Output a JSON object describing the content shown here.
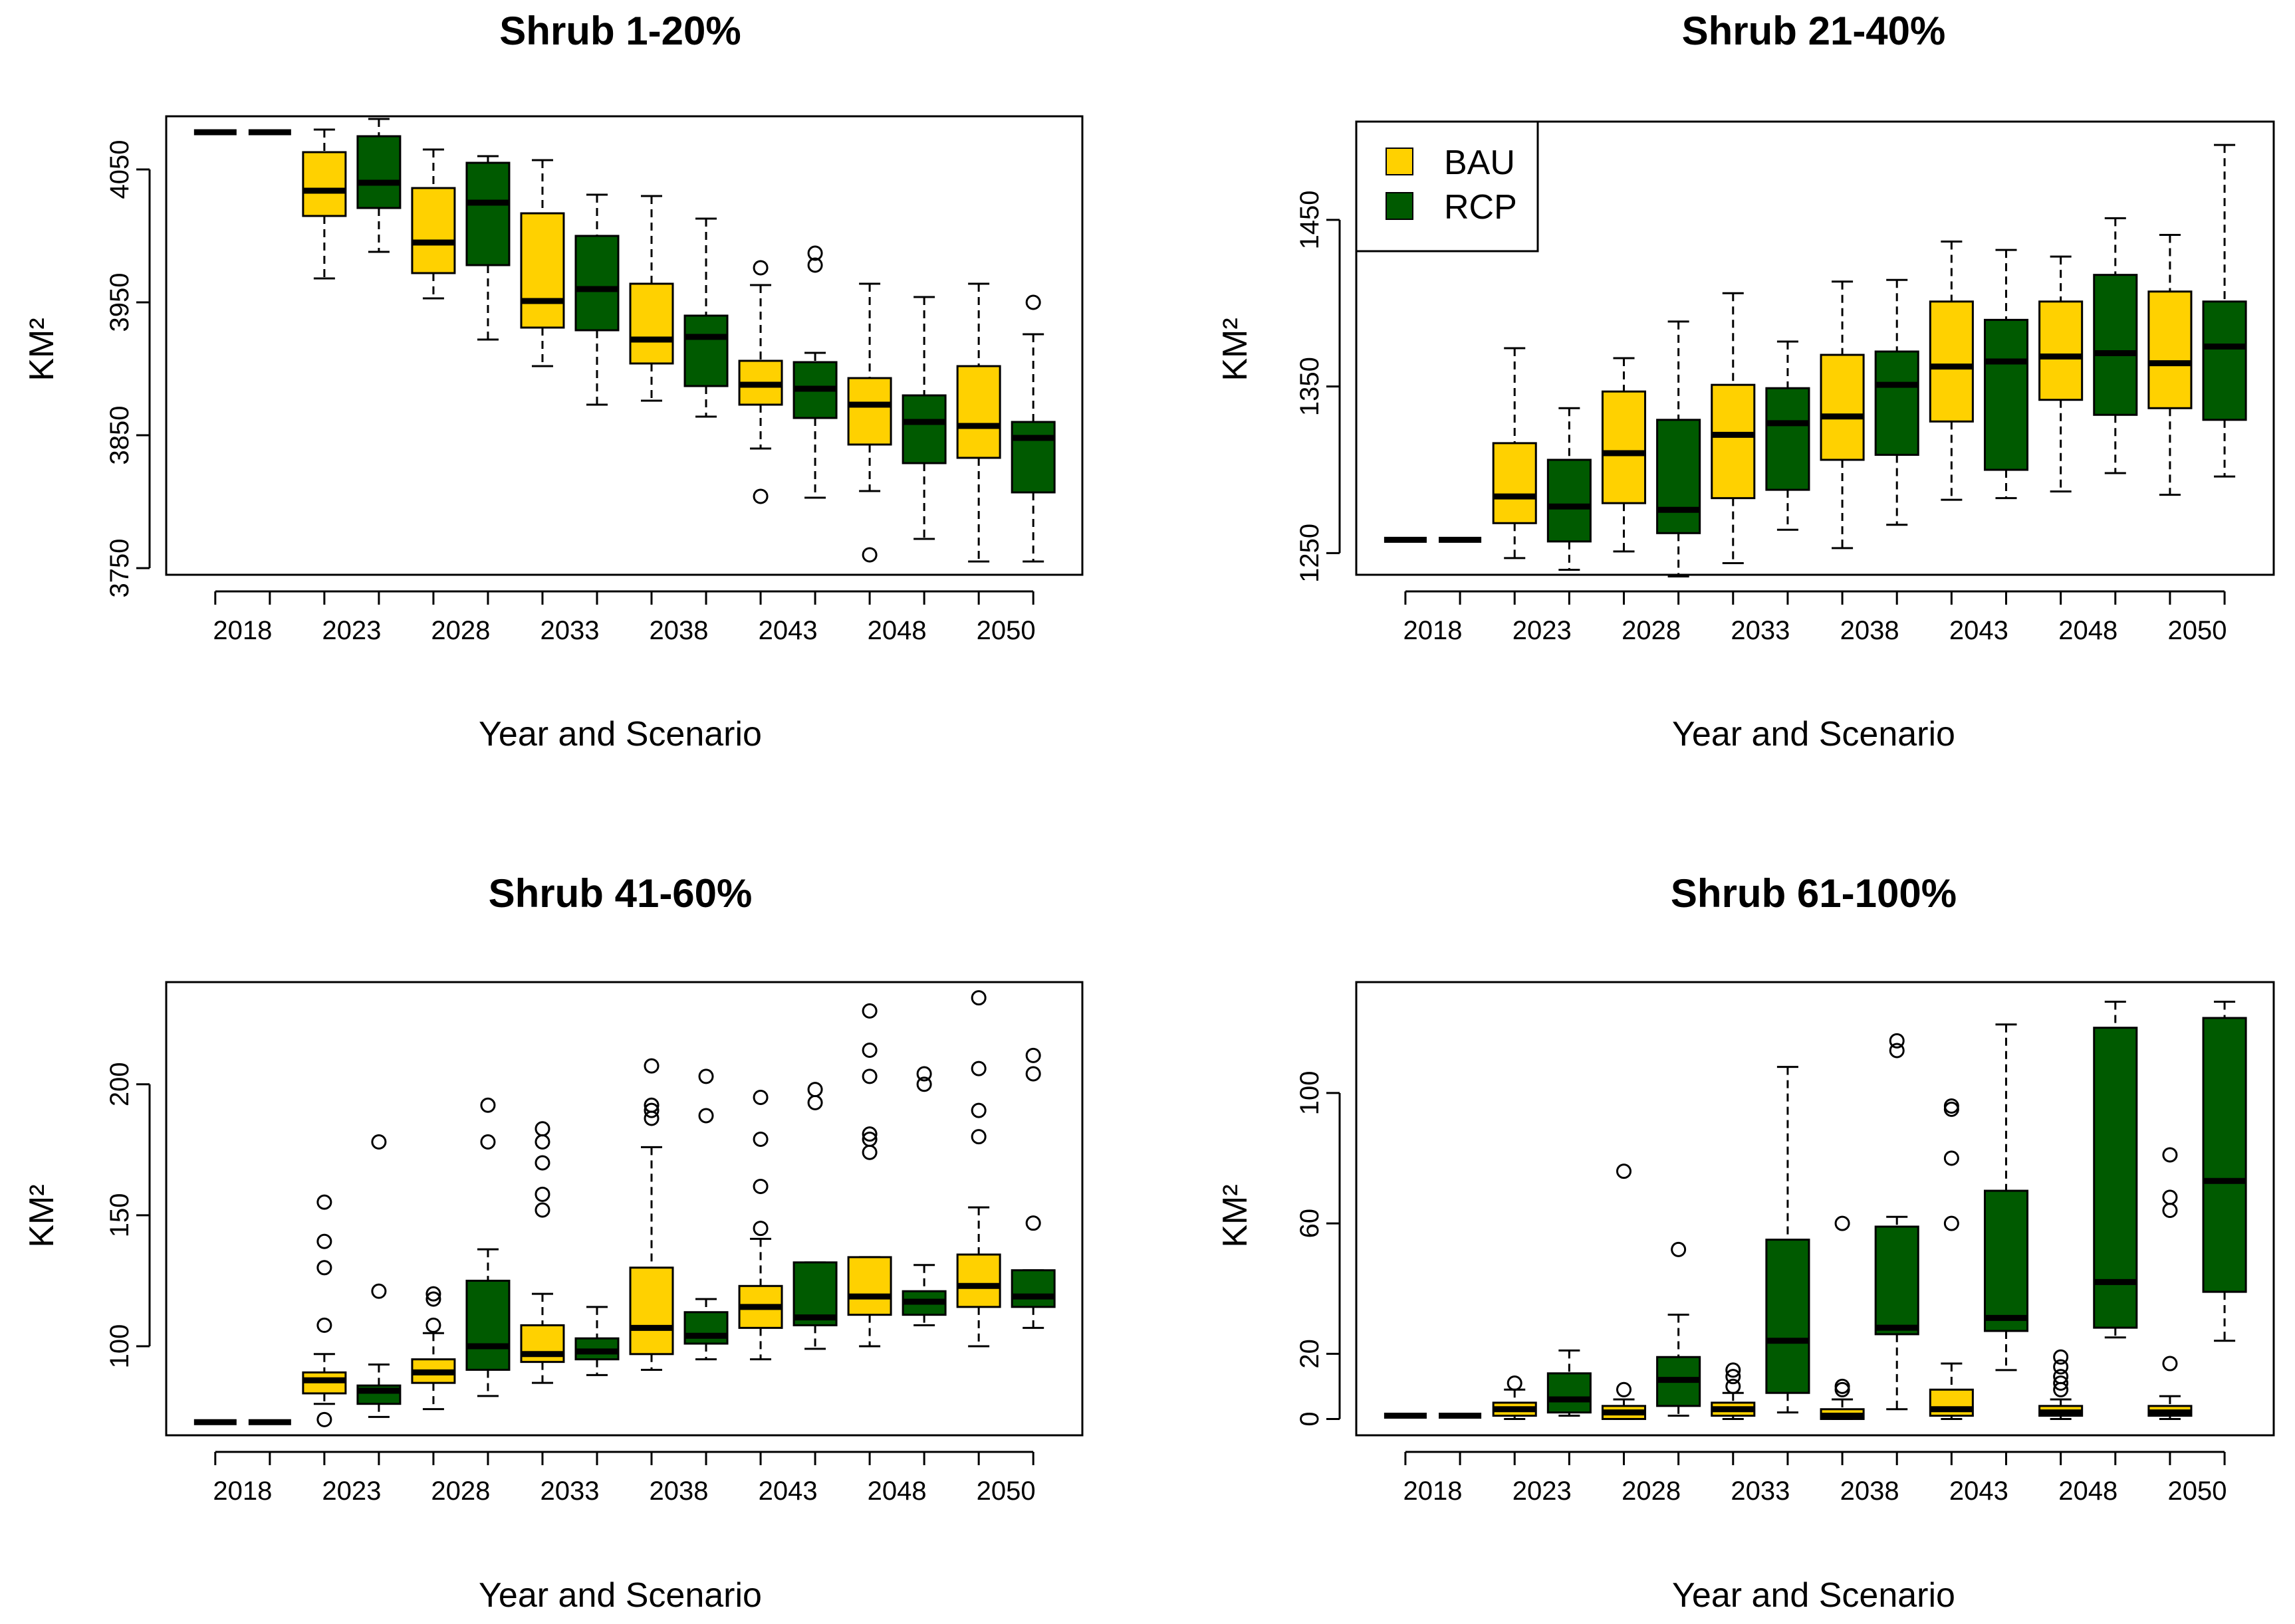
{
  "figure": {
    "xlabel": "Year and Scenario",
    "ylabel": "KM²",
    "x_tick_labels": [
      "2018",
      "2023",
      "2028",
      "2033",
      "2038",
      "2043",
      "2048",
      "2050"
    ],
    "colors": {
      "BAU": "#FFD100",
      "RCP": "#005A00",
      "outline": "#000000"
    },
    "legend": [
      {
        "name": "BAU",
        "color": "#FFD100"
      },
      {
        "name": "RCP",
        "color": "#005A00"
      }
    ]
  },
  "chart_data": [
    {
      "type": "box",
      "title": "Shrub 1-20%",
      "xlabel": "Year and Scenario",
      "ylabel": "KM²",
      "ylim": [
        3745,
        4090
      ],
      "yticks": [
        3750,
        3850,
        3950,
        4050
      ],
      "ytick_labels": [
        "3750",
        "3850",
        "3950",
        "4050"
      ],
      "series": [
        {
          "name": "BAU",
          "boxes": [
            {
              "year": "2018",
              "whisker_low": 4078,
              "q1": 4078,
              "median": 4078,
              "q3": 4078,
              "whisker_high": 4078,
              "outliers": []
            },
            {
              "year": "2023",
              "whisker_low": 3968,
              "q1": 4015,
              "median": 4034,
              "q3": 4063,
              "whisker_high": 4080,
              "outliers": []
            },
            {
              "year": "2028",
              "whisker_low": 3953,
              "q1": 3972,
              "median": 3995,
              "q3": 4036,
              "whisker_high": 4065,
              "outliers": []
            },
            {
              "year": "2033",
              "whisker_low": 3902,
              "q1": 3931,
              "median": 3951,
              "q3": 4017,
              "whisker_high": 4057,
              "outliers": []
            },
            {
              "year": "2038",
              "whisker_low": 3876,
              "q1": 3904,
              "median": 3922,
              "q3": 3964,
              "whisker_high": 4030,
              "outliers": []
            },
            {
              "year": "2043",
              "whisker_low": 3840,
              "q1": 3873,
              "median": 3888,
              "q3": 3906,
              "whisker_high": 3963,
              "outliers": [
                3804,
                3976
              ]
            },
            {
              "year": "2048",
              "whisker_low": 3808,
              "q1": 3843,
              "median": 3873,
              "q3": 3893,
              "whisker_high": 3964,
              "outliers": [
                3760
              ]
            },
            {
              "year": "2050",
              "whisker_low": 3755,
              "q1": 3833,
              "median": 3857,
              "q3": 3902,
              "whisker_high": 3964,
              "outliers": []
            }
          ]
        },
        {
          "name": "RCP",
          "boxes": [
            {
              "year": "2018",
              "whisker_low": 4078,
              "q1": 4078,
              "median": 4078,
              "q3": 4078,
              "whisker_high": 4078,
              "outliers": []
            },
            {
              "year": "2023",
              "whisker_low": 3988,
              "q1": 4021,
              "median": 4040,
              "q3": 4075,
              "whisker_high": 4088,
              "outliers": []
            },
            {
              "year": "2028",
              "whisker_low": 3922,
              "q1": 3978,
              "median": 4025,
              "q3": 4055,
              "whisker_high": 4060,
              "outliers": []
            },
            {
              "year": "2033",
              "whisker_low": 3873,
              "q1": 3929,
              "median": 3960,
              "q3": 4000,
              "whisker_high": 4031,
              "outliers": []
            },
            {
              "year": "2038",
              "whisker_low": 3864,
              "q1": 3887,
              "median": 3924,
              "q3": 3940,
              "whisker_high": 4013,
              "outliers": []
            },
            {
              "year": "2043",
              "whisker_low": 3803,
              "q1": 3863,
              "median": 3885,
              "q3": 3905,
              "whisker_high": 3912,
              "outliers": [
                3978,
                3987
              ]
            },
            {
              "year": "2048",
              "whisker_low": 3772,
              "q1": 3829,
              "median": 3860,
              "q3": 3880,
              "whisker_high": 3954,
              "outliers": []
            },
            {
              "year": "2050",
              "whisker_low": 3755,
              "q1": 3807,
              "median": 3848,
              "q3": 3860,
              "whisker_high": 3926,
              "outliers": [
                3950
              ]
            }
          ]
        }
      ]
    },
    {
      "type": "box",
      "title": "Shrub 21-40%",
      "xlabel": "Year and Scenario",
      "ylabel": "KM²",
      "ylim": [
        1237,
        1509
      ],
      "yticks": [
        1250,
        1350,
        1450
      ],
      "ytick_labels": [
        "1250",
        "1350",
        "1450"
      ],
      "legend": [
        "BAU",
        "RCP"
      ],
      "series": [
        {
          "name": "BAU",
          "boxes": [
            {
              "year": "2018",
              "whisker_low": 1258,
              "q1": 1258,
              "median": 1258,
              "q3": 1258,
              "whisker_high": 1258,
              "outliers": []
            },
            {
              "year": "2023",
              "whisker_low": 1247,
              "q1": 1268,
              "median": 1284,
              "q3": 1316,
              "whisker_high": 1373,
              "outliers": []
            },
            {
              "year": "2028",
              "whisker_low": 1251,
              "q1": 1280,
              "median": 1310,
              "q3": 1347,
              "whisker_high": 1367,
              "outliers": []
            },
            {
              "year": "2033",
              "whisker_low": 1244,
              "q1": 1283,
              "median": 1321,
              "q3": 1351,
              "whisker_high": 1406,
              "outliers": []
            },
            {
              "year": "2038",
              "whisker_low": 1253,
              "q1": 1306,
              "median": 1332,
              "q3": 1369,
              "whisker_high": 1413,
              "outliers": []
            },
            {
              "year": "2043",
              "whisker_low": 1282,
              "q1": 1329,
              "median": 1362,
              "q3": 1401,
              "whisker_high": 1437,
              "outliers": []
            },
            {
              "year": "2048",
              "whisker_low": 1287,
              "q1": 1342,
              "median": 1368,
              "q3": 1401,
              "whisker_high": 1428,
              "outliers": []
            },
            {
              "year": "2050",
              "whisker_low": 1285,
              "q1": 1337,
              "median": 1364,
              "q3": 1407,
              "whisker_high": 1441,
              "outliers": []
            }
          ]
        },
        {
          "name": "RCP",
          "boxes": [
            {
              "year": "2018",
              "whisker_low": 1258,
              "q1": 1258,
              "median": 1258,
              "q3": 1258,
              "whisker_high": 1258,
              "outliers": []
            },
            {
              "year": "2023",
              "whisker_low": 1240,
              "q1": 1257,
              "median": 1278,
              "q3": 1306,
              "whisker_high": 1337,
              "outliers": []
            },
            {
              "year": "2028",
              "whisker_low": 1236,
              "q1": 1262,
              "median": 1276,
              "q3": 1330,
              "whisker_high": 1389,
              "outliers": []
            },
            {
              "year": "2033",
              "whisker_low": 1264,
              "q1": 1288,
              "median": 1328,
              "q3": 1349,
              "whisker_high": 1377,
              "outliers": []
            },
            {
              "year": "2038",
              "whisker_low": 1267,
              "q1": 1309,
              "median": 1351,
              "q3": 1371,
              "whisker_high": 1414,
              "outliers": []
            },
            {
              "year": "2043",
              "whisker_low": 1283,
              "q1": 1300,
              "median": 1365,
              "q3": 1390,
              "whisker_high": 1432,
              "outliers": []
            },
            {
              "year": "2048",
              "whisker_low": 1298,
              "q1": 1333,
              "median": 1370,
              "q3": 1417,
              "whisker_high": 1451,
              "outliers": []
            },
            {
              "year": "2050",
              "whisker_low": 1296,
              "q1": 1330,
              "median": 1374,
              "q3": 1401,
              "whisker_high": 1495,
              "outliers": []
            }
          ]
        }
      ]
    },
    {
      "type": "box",
      "title": "Shrub 41-60%",
      "xlabel": "Year and Scenario",
      "ylabel": "KM²",
      "ylim": [
        66,
        239
      ],
      "yticks": [
        100,
        150,
        200
      ],
      "ytick_labels": [
        "100",
        "150",
        "200"
      ],
      "series": [
        {
          "name": "BAU",
          "boxes": [
            {
              "year": "2018",
              "whisker_low": 71,
              "q1": 71,
              "median": 71,
              "q3": 71,
              "whisker_high": 71,
              "outliers": []
            },
            {
              "year": "2023",
              "whisker_low": 78,
              "q1": 82,
              "median": 87,
              "q3": 90,
              "whisker_high": 97,
              "outliers": [
                72,
                108,
                130,
                140,
                155
              ]
            },
            {
              "year": "2028",
              "whisker_low": 76,
              "q1": 86,
              "median": 90,
              "q3": 95,
              "whisker_high": 105,
              "outliers": [
                108,
                118,
                120
              ]
            },
            {
              "year": "2033",
              "whisker_low": 86,
              "q1": 94,
              "median": 97,
              "q3": 108,
              "whisker_high": 120,
              "outliers": [
                152,
                158,
                170,
                178,
                183
              ]
            },
            {
              "year": "2038",
              "whisker_low": 91,
              "q1": 97,
              "median": 107,
              "q3": 130,
              "whisker_high": 176,
              "outliers": [
                187,
                190,
                192,
                207
              ]
            },
            {
              "year": "2043",
              "whisker_low": 95,
              "q1": 107,
              "median": 115,
              "q3": 123,
              "whisker_high": 141,
              "outliers": [
                145,
                161,
                179,
                195
              ]
            },
            {
              "year": "2048",
              "whisker_low": 100,
              "q1": 112,
              "median": 119,
              "q3": 134,
              "whisker_high": 134,
              "outliers": [
                174,
                179,
                181,
                203,
                213,
                228
              ]
            },
            {
              "year": "2050",
              "whisker_low": 100,
              "q1": 115,
              "median": 123,
              "q3": 135,
              "whisker_high": 153,
              "outliers": [
                180,
                190,
                206,
                233
              ]
            }
          ]
        },
        {
          "name": "RCP",
          "boxes": [
            {
              "year": "2018",
              "whisker_low": 71,
              "q1": 71,
              "median": 71,
              "q3": 71,
              "whisker_high": 71,
              "outliers": []
            },
            {
              "year": "2023",
              "whisker_low": 73,
              "q1": 78,
              "median": 83,
              "q3": 85,
              "whisker_high": 93,
              "outliers": [
                121,
                178
              ]
            },
            {
              "year": "2028",
              "whisker_low": 81,
              "q1": 91,
              "median": 100,
              "q3": 125,
              "whisker_high": 137,
              "outliers": [
                178,
                192
              ]
            },
            {
              "year": "2033",
              "whisker_low": 89,
              "q1": 95,
              "median": 98,
              "q3": 103,
              "whisker_high": 115,
              "outliers": []
            },
            {
              "year": "2038",
              "whisker_low": 95,
              "q1": 101,
              "median": 104,
              "q3": 113,
              "whisker_high": 118,
              "outliers": [
                188,
                203
              ]
            },
            {
              "year": "2043",
              "whisker_low": 99,
              "q1": 108,
              "median": 111,
              "q3": 132,
              "whisker_high": 132,
              "outliers": [
                193,
                198
              ]
            },
            {
              "year": "2048",
              "whisker_low": 108,
              "q1": 112,
              "median": 117,
              "q3": 121,
              "whisker_high": 131,
              "outliers": [
                200,
                204
              ]
            },
            {
              "year": "2050",
              "whisker_low": 107,
              "q1": 115,
              "median": 119,
              "q3": 129,
              "whisker_high": 129,
              "outliers": [
                147,
                204,
                211
              ]
            }
          ]
        }
      ]
    },
    {
      "type": "box",
      "title": "Shrub 61-100%",
      "xlabel": "Year and Scenario",
      "ylabel": "KM²",
      "ylim": [
        -5,
        134
      ],
      "yticks": [
        0,
        20,
        60,
        100
      ],
      "ytick_labels": [
        "0",
        "20",
        "60",
        "100"
      ],
      "series": [
        {
          "name": "BAU",
          "boxes": [
            {
              "year": "2018",
              "whisker_low": 1,
              "q1": 1,
              "median": 1,
              "q3": 1,
              "whisker_high": 1,
              "outliers": []
            },
            {
              "year": "2023",
              "whisker_low": 0,
              "q1": 1,
              "median": 3,
              "q3": 5,
              "whisker_high": 9,
              "outliers": [
                11
              ]
            },
            {
              "year": "2028",
              "whisker_low": 0,
              "q1": 0,
              "median": 2,
              "q3": 4,
              "whisker_high": 6,
              "outliers": [
                9,
                76
              ]
            },
            {
              "year": "2033",
              "whisker_low": 0,
              "q1": 1,
              "median": 3,
              "q3": 5,
              "whisker_high": 8,
              "outliers": [
                10,
                13,
                15
              ]
            },
            {
              "year": "2038",
              "whisker_low": 0,
              "q1": 0,
              "median": 1,
              "q3": 3,
              "whisker_high": 6,
              "outliers": [
                9,
                10,
                60
              ]
            },
            {
              "year": "2043",
              "whisker_low": 0,
              "q1": 1,
              "median": 3,
              "q3": 9,
              "whisker_high": 17,
              "outliers": [
                60,
                80,
                95,
                96
              ]
            },
            {
              "year": "2048",
              "whisker_low": 0,
              "q1": 1,
              "median": 2,
              "q3": 4,
              "whisker_high": 6,
              "outliers": [
                9,
                11,
                13,
                16,
                19
              ]
            },
            {
              "year": "2050",
              "whisker_low": 0,
              "q1": 1,
              "median": 2,
              "q3": 4,
              "whisker_high": 7,
              "outliers": [
                17,
                64,
                68,
                81
              ]
            }
          ]
        },
        {
          "name": "RCP",
          "boxes": [
            {
              "year": "2018",
              "whisker_low": 1,
              "q1": 1,
              "median": 1,
              "q3": 1,
              "whisker_high": 1,
              "outliers": []
            },
            {
              "year": "2023",
              "whisker_low": 1,
              "q1": 2,
              "median": 6,
              "q3": 14,
              "whisker_high": 21,
              "outliers": []
            },
            {
              "year": "2028",
              "whisker_low": 1,
              "q1": 4,
              "median": 12,
              "q3": 19,
              "whisker_high": 32,
              "outliers": [
                52
              ]
            },
            {
              "year": "2033",
              "whisker_low": 2,
              "q1": 8,
              "median": 24,
              "q3": 55,
              "whisker_high": 108,
              "outliers": []
            },
            {
              "year": "2038",
              "whisker_low": 3,
              "q1": 26,
              "median": 28,
              "q3": 59,
              "whisker_high": 62,
              "outliers": [
                113,
                116
              ]
            },
            {
              "year": "2043",
              "whisker_low": 15,
              "q1": 27,
              "median": 31,
              "q3": 70,
              "whisker_high": 121,
              "outliers": []
            },
            {
              "year": "2048",
              "whisker_low": 25,
              "q1": 28,
              "median": 42,
              "q3": 120,
              "whisker_high": 128,
              "outliers": []
            },
            {
              "year": "2050",
              "whisker_low": 24,
              "q1": 39,
              "median": 73,
              "q3": 123,
              "whisker_high": 128,
              "outliers": []
            }
          ]
        }
      ]
    }
  ]
}
